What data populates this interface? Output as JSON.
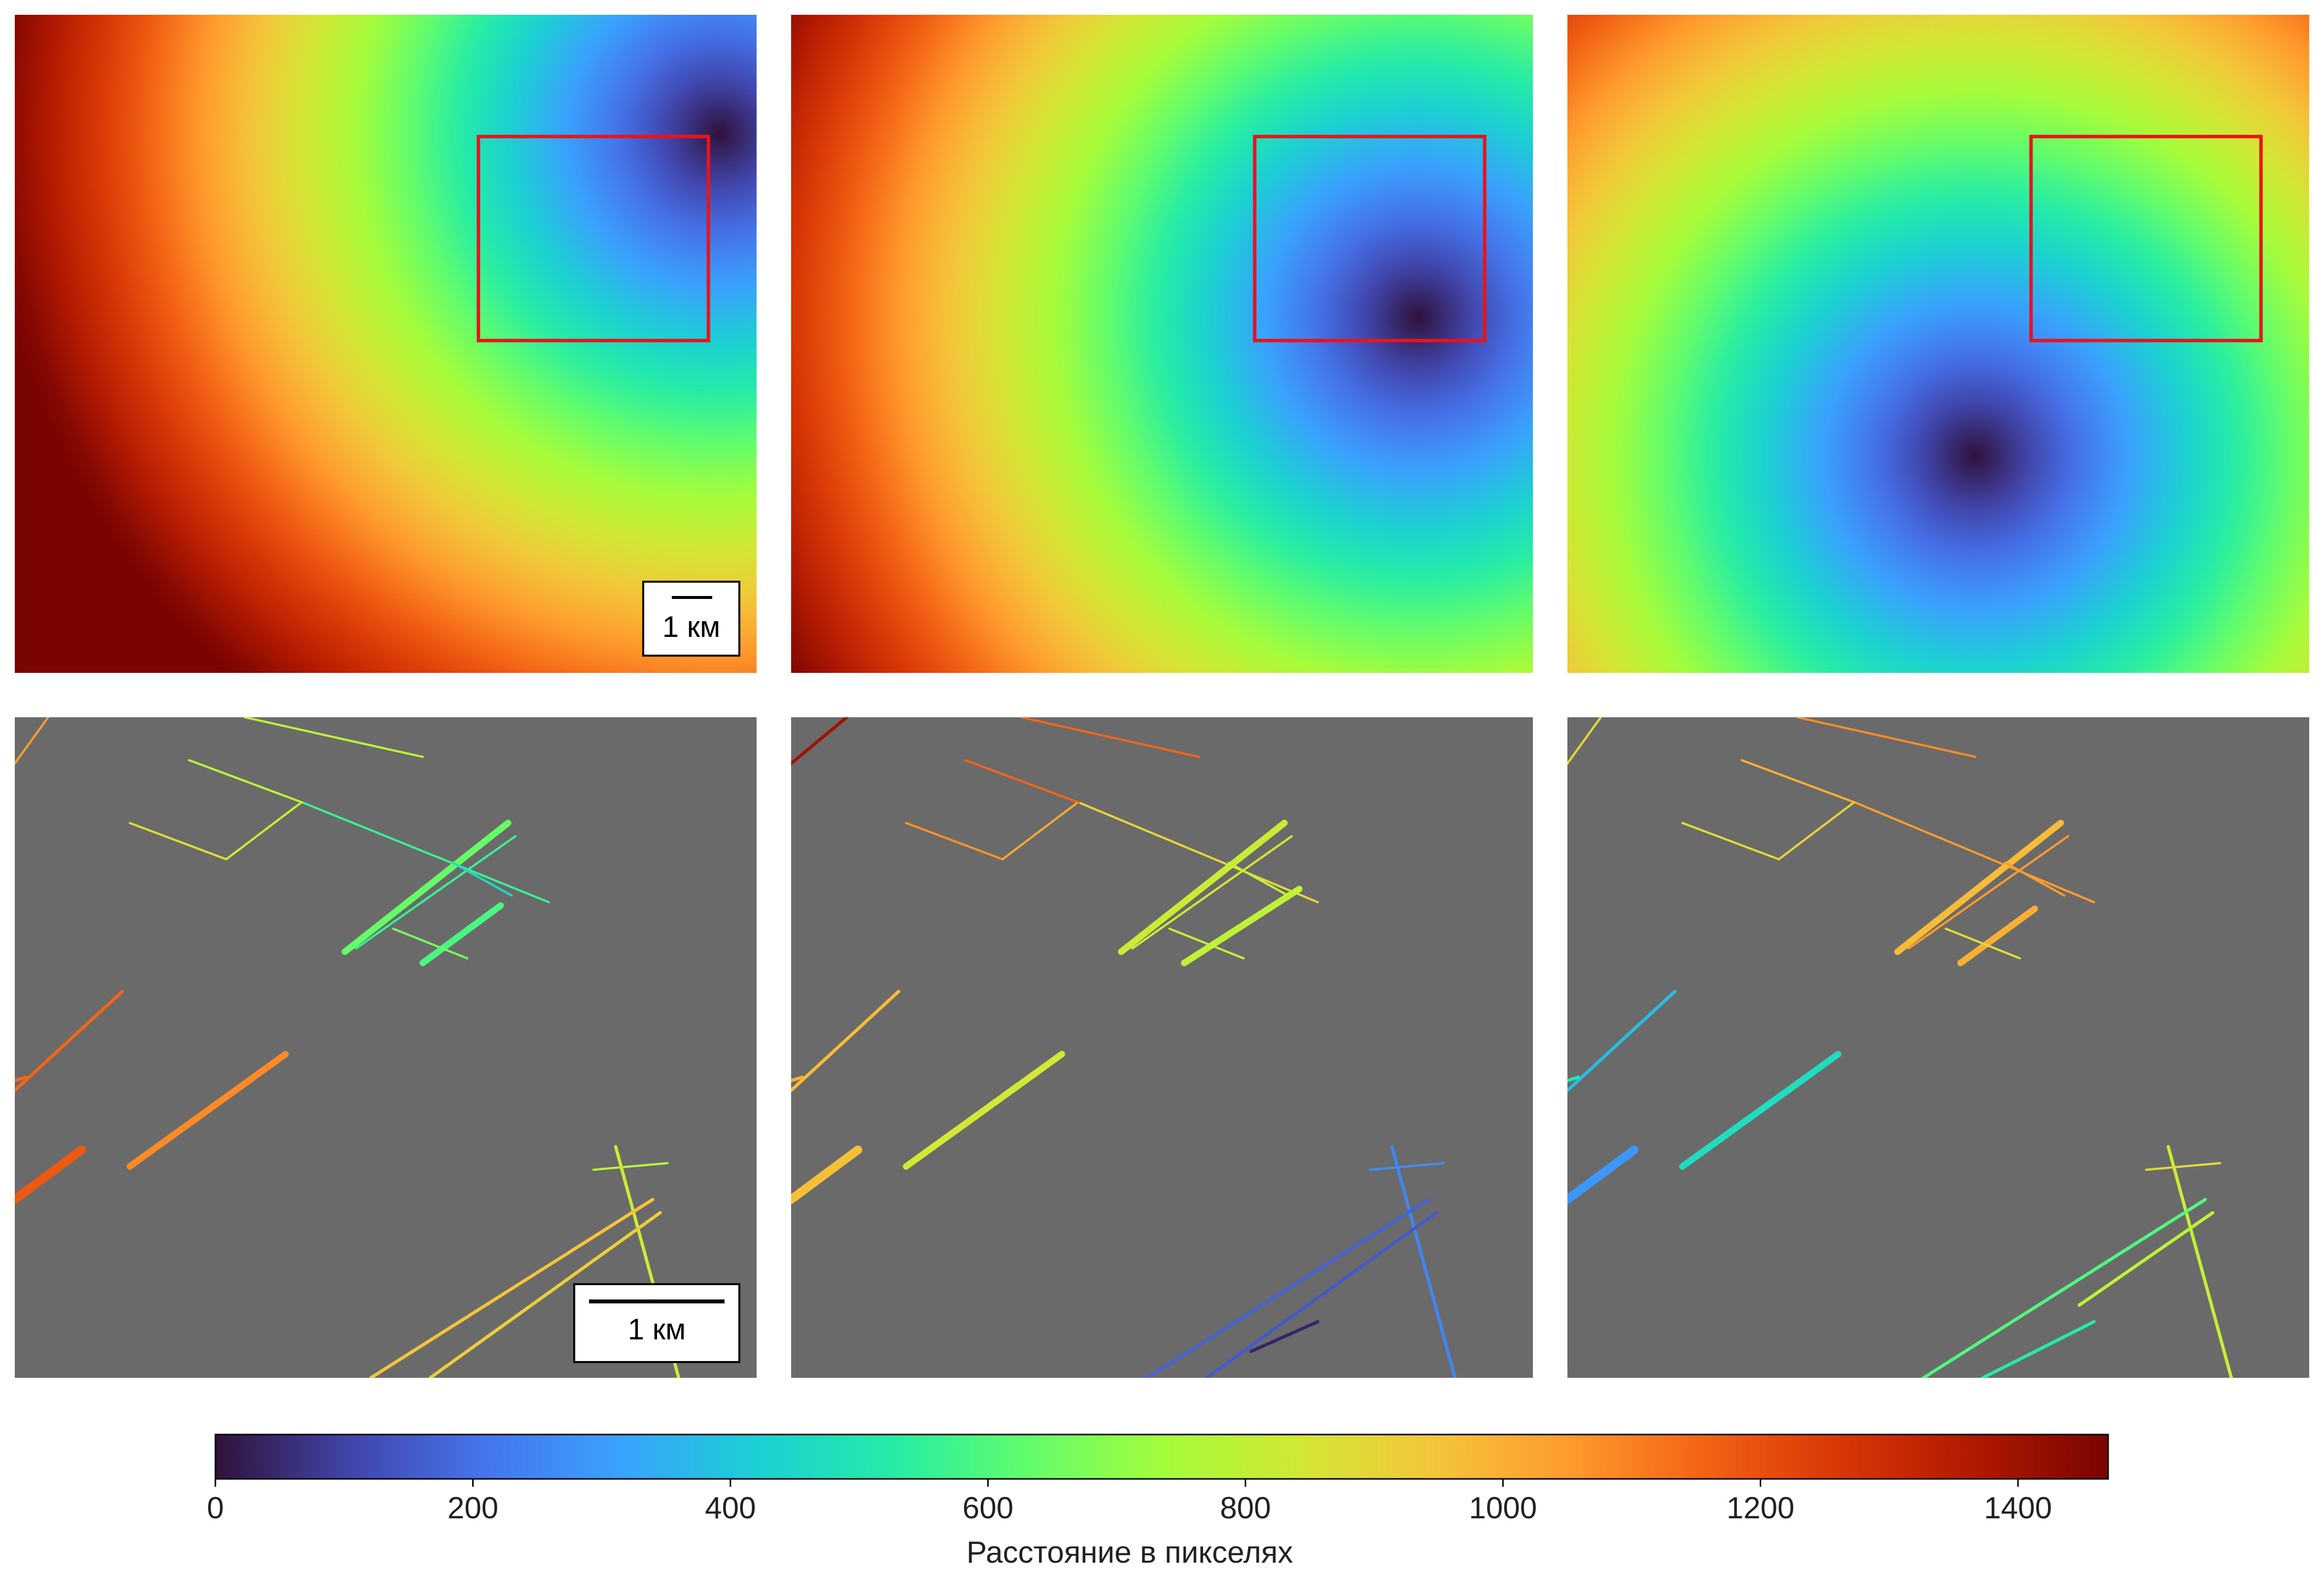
{
  "figure": {
    "scalebar_top": "1 км",
    "scalebar_bottom": "1 км"
  },
  "colorbar": {
    "label": "Расстояние в пикселях",
    "min": 0,
    "max": 1470,
    "ticks": [
      0,
      200,
      400,
      600,
      800,
      1000,
      1200,
      1400
    ],
    "tick_labels": [
      "0",
      "200",
      "400",
      "600",
      "800",
      "1000",
      "1200",
      "1400"
    ],
    "colormap": "turbo",
    "stops": [
      "#30123b",
      "#4145ab",
      "#4675ed",
      "#39a2fc",
      "#1bcfd4",
      "#24eca6",
      "#61fc6c",
      "#a4fc3b",
      "#d1e834",
      "#f3c63a",
      "#fe9b2d",
      "#f36315",
      "#d93806",
      "#b11901",
      "#7a0402"
    ]
  },
  "chart_data": [
    {
      "type": "heatmap",
      "panel": "top-left",
      "description_values": "distance field",
      "source_point": [
        0.95,
        0.18
      ],
      "inset_box": [
        0.625,
        0.185,
        0.935,
        0.495
      ],
      "value_scale": 1560
    },
    {
      "type": "heatmap",
      "panel": "top-middle",
      "source_point": [
        0.845,
        0.46
      ],
      "inset_box": [
        0.625,
        0.185,
        0.935,
        0.495
      ],
      "value_scale": 1560
    },
    {
      "type": "heatmap",
      "panel": "top-right",
      "source_point": [
        0.55,
        0.67
      ],
      "inset_box": [
        0.625,
        0.185,
        0.935,
        0.495
      ],
      "value_scale": 1560
    },
    {
      "type": "heatmap",
      "panel": "bottom-left",
      "segments": [
        {
          "p": [
            [
              0.0,
              0.07
            ],
            [
              0.045,
              0.0
            ]
          ],
          "value": 1050,
          "w": 2
        },
        {
          "p": [
            [
              0.31,
              0.0
            ],
            [
              0.55,
              0.06
            ]
          ],
          "value": 790,
          "w": 2
        },
        {
          "p": [
            [
              0.235,
              0.065
            ],
            [
              0.39,
              0.13
            ]
          ],
          "value": 790,
          "w": 2
        },
        {
          "p": [
            [
              0.39,
              0.13
            ],
            [
              0.72,
              0.28
            ]
          ],
          "value": 560,
          "w": 2
        },
        {
          "p": [
            [
              0.155,
              0.16
            ],
            [
              0.285,
              0.215
            ]
          ],
          "value": 880,
          "w": 2
        },
        {
          "p": [
            [
              0.285,
              0.215
            ],
            [
              0.385,
              0.13
            ]
          ],
          "value": 820,
          "w": 2
        },
        {
          "p": [
            [
              0.445,
              0.355
            ],
            [
              0.665,
              0.16
            ]
          ],
          "value": 640,
          "w": 6
        },
        {
          "p": [
            [
              0.46,
              0.35
            ],
            [
              0.675,
              0.18
            ]
          ],
          "value": 560,
          "w": 2
        },
        {
          "p": [
            [
              0.55,
              0.372
            ],
            [
              0.655,
              0.285
            ]
          ],
          "value": 590,
          "w": 6
        },
        {
          "p": [
            [
              0.51,
              0.32
            ],
            [
              0.61,
              0.365
            ]
          ],
          "value": 660,
          "w": 2
        },
        {
          "p": [
            [
              0.59,
              0.22
            ],
            [
              0.67,
              0.27
            ]
          ],
          "value": 460,
          "w": 2
        },
        {
          "p": [
            [
              0.0,
              0.565
            ],
            [
              0.145,
              0.415
            ]
          ],
          "value": 1150,
          "w": 3
        },
        {
          "p": [
            [
              0.0,
              0.73
            ],
            [
              0.09,
              0.655
            ]
          ],
          "value": 1180,
          "w": 8
        },
        {
          "p": [
            [
              0.155,
              0.68
            ],
            [
              0.365,
              0.51
            ]
          ],
          "value": 1080,
          "w": 6
        },
        {
          "p": [
            [
              0.0,
              0.55
            ],
            [
              0.015,
              0.545
            ]
          ],
          "value": 1150,
          "w": 3
        },
        {
          "p": [
            [
              0.81,
              0.65
            ],
            [
              0.895,
              1.0
            ]
          ],
          "value": 830,
          "w": 3
        },
        {
          "p": [
            [
              0.78,
              0.685
            ],
            [
              0.88,
              0.675
            ]
          ],
          "value": 780,
          "w": 2
        },
        {
          "p": [
            [
              0.48,
              1.0
            ],
            [
              0.86,
              0.73
            ]
          ],
          "value": 950,
          "w": 3
        },
        {
          "p": [
            [
              0.56,
              1.0
            ],
            [
              0.87,
              0.75
            ]
          ],
          "value": 920,
          "w": 3
        },
        {
          "p": [
            [
              0.7,
              0.9
            ],
            [
              0.71,
              0.95
            ]
          ],
          "value": 0,
          "w": 0
        }
      ]
    },
    {
      "type": "heatmap",
      "panel": "bottom-middle",
      "segments": [
        {
          "p": [
            [
              0.0,
              0.07
            ],
            [
              0.075,
              0.0
            ]
          ],
          "value": 1400,
          "w": 3
        },
        {
          "p": [
            [
              0.31,
              0.0
            ],
            [
              0.55,
              0.06
            ]
          ],
          "value": 1150,
          "w": 2
        },
        {
          "p": [
            [
              0.235,
              0.065
            ],
            [
              0.39,
              0.13
            ]
          ],
          "value": 1150,
          "w": 2
        },
        {
          "p": [
            [
              0.39,
              0.13
            ],
            [
              0.71,
              0.28
            ]
          ],
          "value": 900,
          "w": 2
        },
        {
          "p": [
            [
              0.155,
              0.16
            ],
            [
              0.285,
              0.215
            ]
          ],
          "value": 1070,
          "w": 2
        },
        {
          "p": [
            [
              0.285,
              0.215
            ],
            [
              0.385,
              0.13
            ]
          ],
          "value": 1020,
          "w": 2
        },
        {
          "p": [
            [
              0.445,
              0.355
            ],
            [
              0.665,
              0.16
            ]
          ],
          "value": 820,
          "w": 6
        },
        {
          "p": [
            [
              0.46,
              0.35
            ],
            [
              0.675,
              0.18
            ]
          ],
          "value": 850,
          "w": 2
        },
        {
          "p": [
            [
              0.53,
              0.372
            ],
            [
              0.685,
              0.26
            ]
          ],
          "value": 800,
          "w": 6
        },
        {
          "p": [
            [
              0.51,
              0.32
            ],
            [
              0.61,
              0.365
            ]
          ],
          "value": 820,
          "w": 2
        },
        {
          "p": [
            [
              0.59,
              0.22
            ],
            [
              0.67,
              0.27
            ]
          ],
          "value": 800,
          "w": 2
        },
        {
          "p": [
            [
              0.0,
              0.565
            ],
            [
              0.145,
              0.415
            ]
          ],
          "value": 970,
          "w": 3
        },
        {
          "p": [
            [
              0.0,
              0.73
            ],
            [
              0.09,
              0.655
            ]
          ],
          "value": 960,
          "w": 8
        },
        {
          "p": [
            [
              0.155,
              0.68
            ],
            [
              0.365,
              0.51
            ]
          ],
          "value": 840,
          "w": 6
        },
        {
          "p": [
            [
              0.0,
              0.55
            ],
            [
              0.015,
              0.545
            ]
          ],
          "value": 1000,
          "w": 3
        },
        {
          "p": [
            [
              0.81,
              0.65
            ],
            [
              0.895,
              1.0
            ]
          ],
          "value": 250,
          "w": 3
        },
        {
          "p": [
            [
              0.78,
              0.685
            ],
            [
              0.88,
              0.675
            ]
          ],
          "value": 270,
          "w": 2
        },
        {
          "p": [
            [
              0.48,
              1.0
            ],
            [
              0.86,
              0.73
            ]
          ],
          "value": 170,
          "w": 3
        },
        {
          "p": [
            [
              0.56,
              1.0
            ],
            [
              0.87,
              0.75
            ]
          ],
          "value": 150,
          "w": 3
        },
        {
          "p": [
            [
              0.62,
              0.96
            ],
            [
              0.71,
              0.915
            ]
          ],
          "value": 40,
          "w": 3
        }
      ]
    },
    {
      "type": "heatmap",
      "panel": "bottom-right",
      "segments": [
        {
          "p": [
            [
              0.0,
              0.07
            ],
            [
              0.045,
              0.0
            ]
          ],
          "value": 880,
          "w": 2
        },
        {
          "p": [
            [
              0.31,
              0.0
            ],
            [
              0.55,
              0.06
            ]
          ],
          "value": 1080,
          "w": 2
        },
        {
          "p": [
            [
              0.235,
              0.065
            ],
            [
              0.39,
              0.13
            ]
          ],
          "value": 1000,
          "w": 2
        },
        {
          "p": [
            [
              0.39,
              0.13
            ],
            [
              0.71,
              0.28
            ]
          ],
          "value": 1050,
          "w": 2
        },
        {
          "p": [
            [
              0.155,
              0.16
            ],
            [
              0.285,
              0.215
            ]
          ],
          "value": 880,
          "w": 2
        },
        {
          "p": [
            [
              0.285,
              0.215
            ],
            [
              0.385,
              0.13
            ]
          ],
          "value": 910,
          "w": 2
        },
        {
          "p": [
            [
              0.445,
              0.355
            ],
            [
              0.665,
              0.16
            ]
          ],
          "value": 970,
          "w": 6
        },
        {
          "p": [
            [
              0.46,
              0.35
            ],
            [
              0.675,
              0.18
            ]
          ],
          "value": 1050,
          "w": 2
        },
        {
          "p": [
            [
              0.53,
              0.372
            ],
            [
              0.63,
              0.29
            ]
          ],
          "value": 1000,
          "w": 6
        },
        {
          "p": [
            [
              0.51,
              0.32
            ],
            [
              0.61,
              0.365
            ]
          ],
          "value": 880,
          "w": 2
        },
        {
          "p": [
            [
              0.59,
              0.22
            ],
            [
              0.67,
              0.27
            ]
          ],
          "value": 1050,
          "w": 2
        },
        {
          "p": [
            [
              0.0,
              0.565
            ],
            [
              0.145,
              0.415
            ]
          ],
          "value": 380,
          "w": 3
        },
        {
          "p": [
            [
              0.0,
              0.73
            ],
            [
              0.09,
              0.655
            ]
          ],
          "value": 290,
          "w": 8
        },
        {
          "p": [
            [
              0.155,
              0.68
            ],
            [
              0.365,
              0.51
            ]
          ],
          "value": 470,
          "w": 6
        },
        {
          "p": [
            [
              0.0,
              0.55
            ],
            [
              0.015,
              0.545
            ]
          ],
          "value": 500,
          "w": 3
        },
        {
          "p": [
            [
              0.81,
              0.65
            ],
            [
              0.895,
              1.0
            ]
          ],
          "value": 810,
          "w": 3
        },
        {
          "p": [
            [
              0.78,
              0.685
            ],
            [
              0.88,
              0.675
            ]
          ],
          "value": 880,
          "w": 2
        },
        {
          "p": [
            [
              0.48,
              1.0
            ],
            [
              0.86,
              0.73
            ]
          ],
          "value": 600,
          "w": 3
        },
        {
          "p": [
            [
              0.56,
              1.0
            ],
            [
              0.71,
              0.915
            ]
          ],
          "value": 520,
          "w": 3
        },
        {
          "p": [
            [
              0.69,
              0.89
            ],
            [
              0.87,
              0.75
            ]
          ],
          "value": 790,
          "w": 3
        }
      ]
    }
  ]
}
